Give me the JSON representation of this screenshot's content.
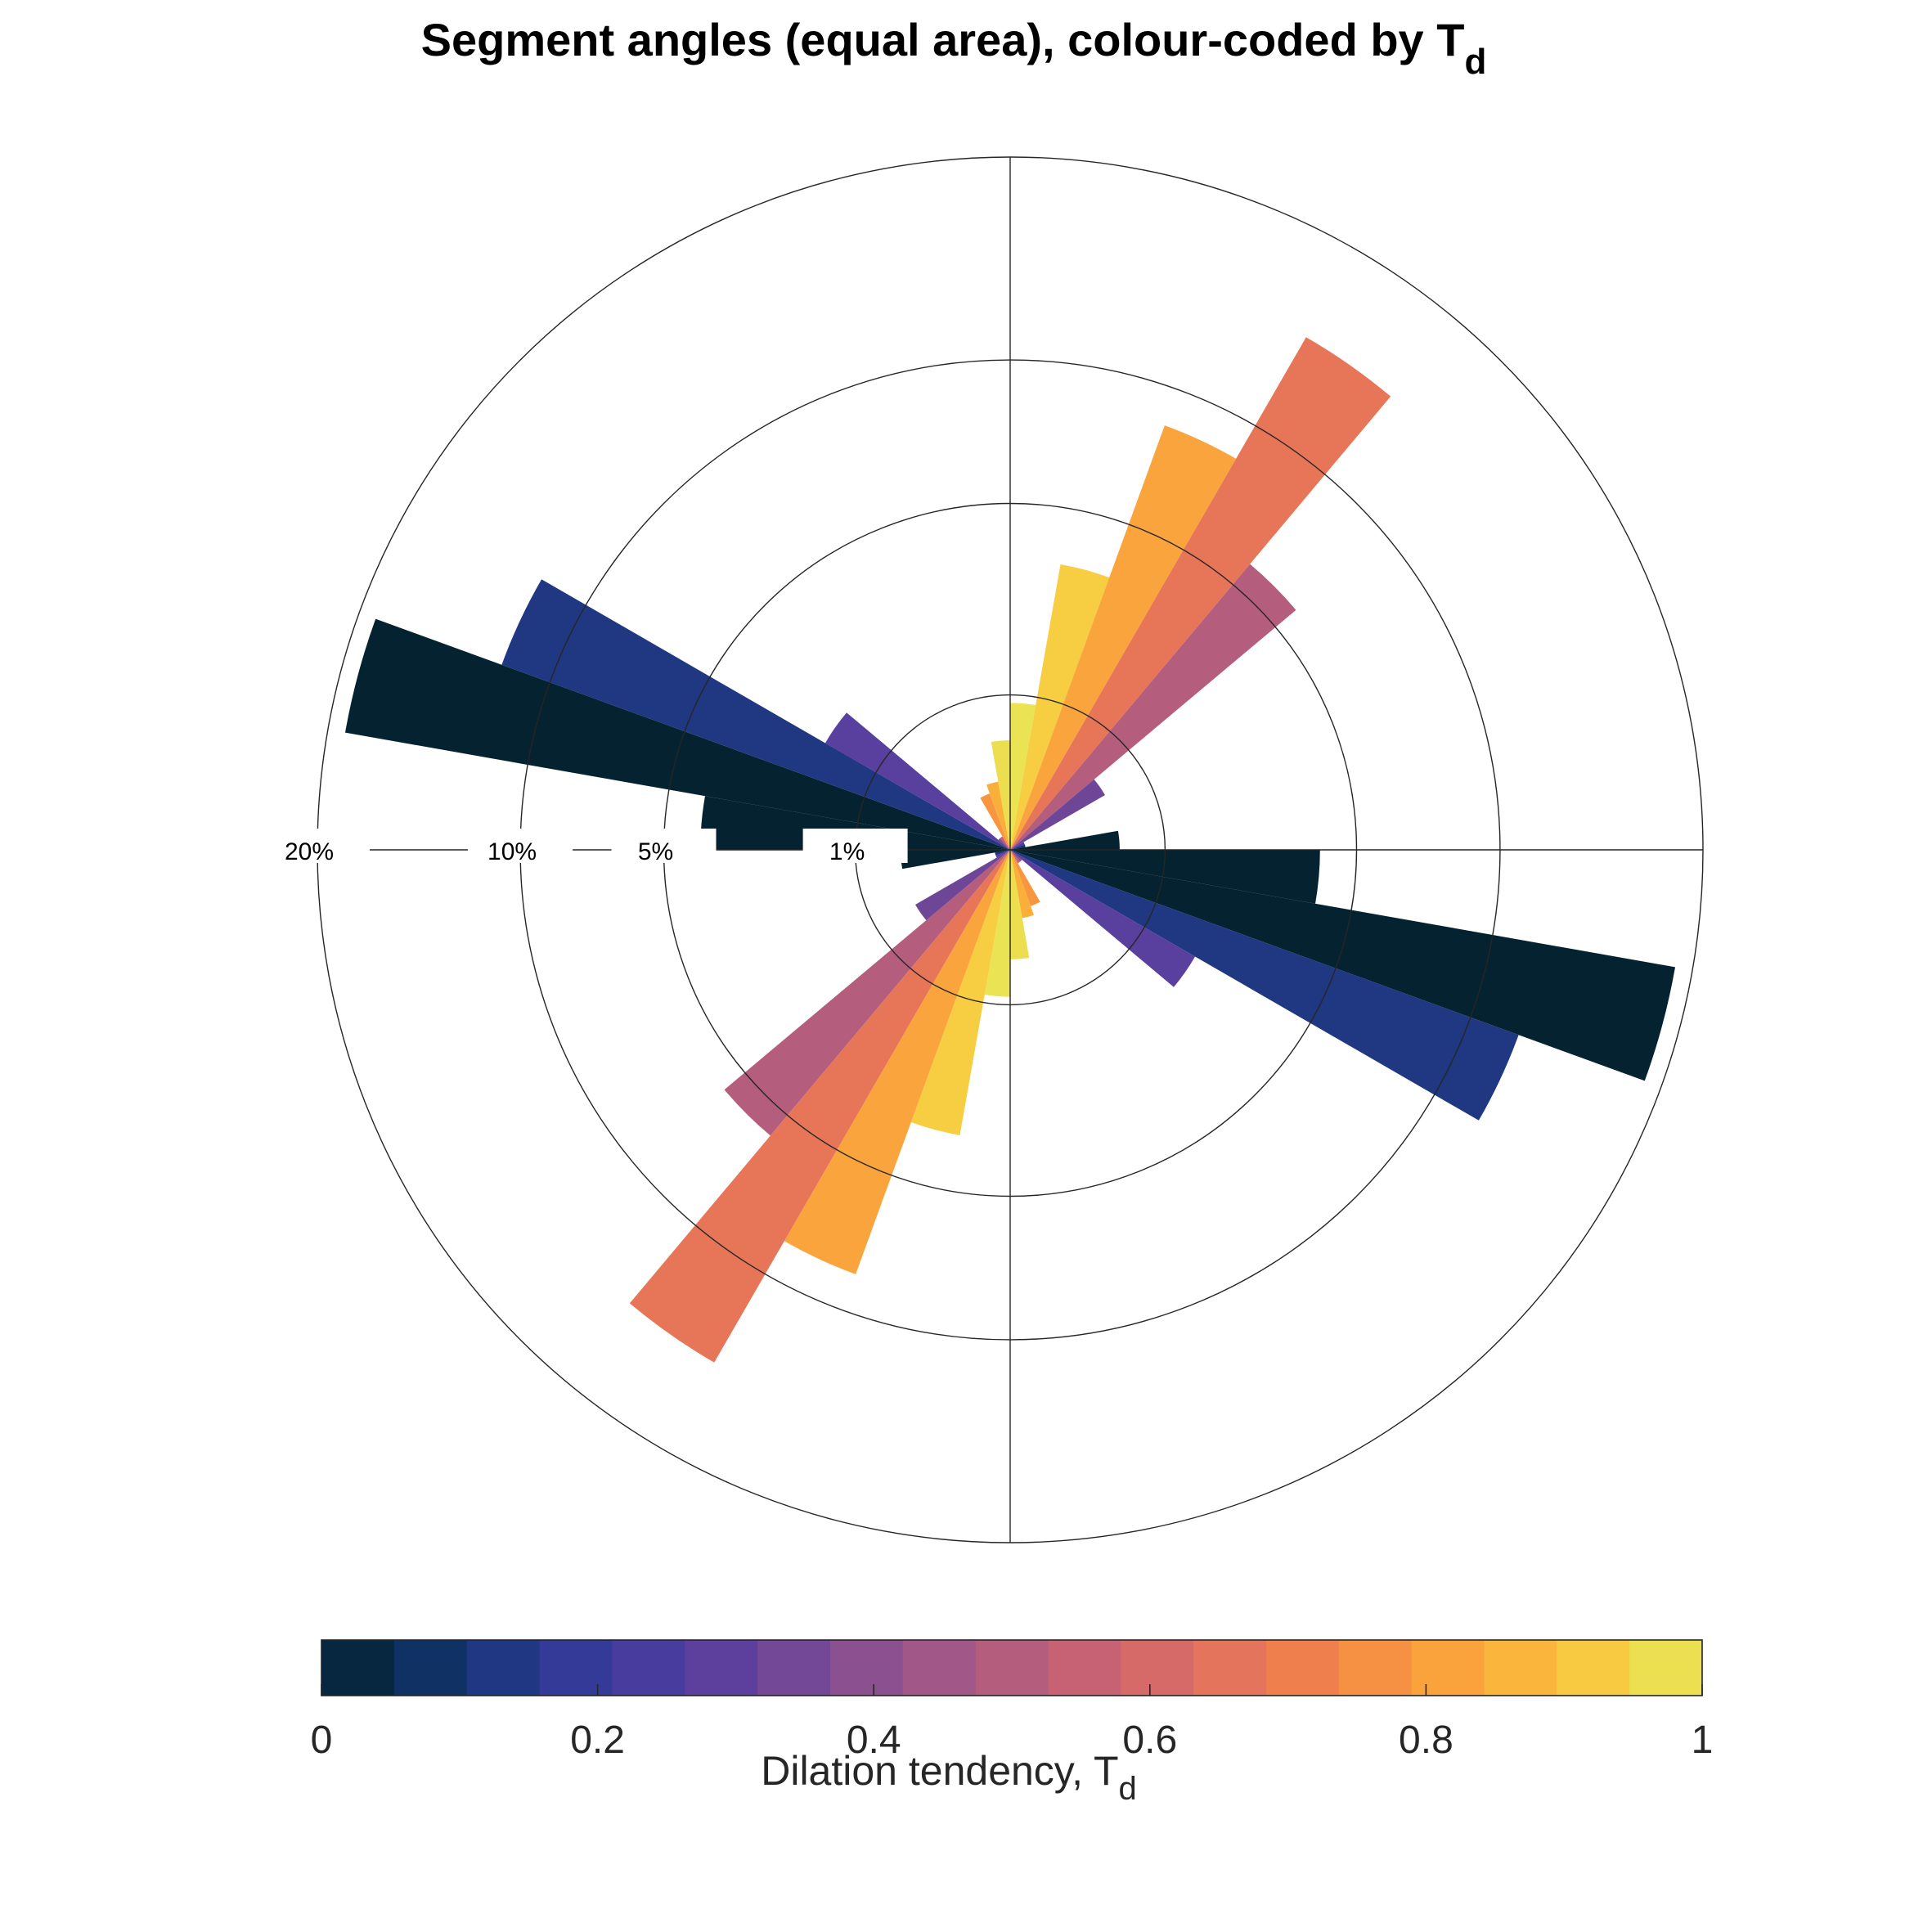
{
  "chart_data": {
    "type": "polar-histogram",
    "title": "Segment angles (equal area), colour-coded by T",
    "title_subscript": "d",
    "radial_scale": "equal-area",
    "ring_labels": [
      "20%",
      "10%",
      "5%",
      "1%"
    ],
    "ring_values": [
      20,
      10,
      5,
      1
    ],
    "bin_width_deg": 10,
    "symmetric": true,
    "bins": [
      {
        "angle_start": 0,
        "angle_end": 10,
        "percent": 0.9,
        "td": 0.98
      },
      {
        "angle_start": 10,
        "angle_end": 20,
        "percent": 3.5,
        "td": 0.93
      },
      {
        "angle_start": 20,
        "angle_end": 30,
        "percent": 8.5,
        "td": 0.82
      },
      {
        "angle_start": 30,
        "angle_end": 40,
        "percent": 14.6,
        "td": 0.67
      },
      {
        "angle_start": 40,
        "angle_end": 50,
        "percent": 5.8,
        "td": 0.5
      },
      {
        "angle_start": 50,
        "angle_end": 60,
        "percent": 0.5,
        "td": 0.33
      },
      {
        "angle_start": 60,
        "angle_end": 70,
        "percent": 0.01,
        "td": 0.25
      },
      {
        "angle_start": 70,
        "angle_end": 80,
        "percent": 0.01,
        "td": 0.1
      },
      {
        "angle_start": 80,
        "angle_end": 90,
        "percent": 0.5,
        "td": 0.0
      },
      {
        "angle_start": 90,
        "angle_end": 100,
        "percent": 4.0,
        "td": 0.0
      },
      {
        "angle_start": 100,
        "angle_end": 110,
        "percent": 19.0,
        "td": 0.0
      },
      {
        "angle_start": 110,
        "angle_end": 120,
        "percent": 12.2,
        "td": 0.13
      },
      {
        "angle_start": 120,
        "angle_end": 130,
        "percent": 1.9,
        "td": 0.28
      },
      {
        "angle_start": 130,
        "angle_end": 140,
        "percent": 0.01,
        "td": 0.4
      },
      {
        "angle_start": 140,
        "angle_end": 150,
        "percent": 0.01,
        "td": 0.55
      },
      {
        "angle_start": 150,
        "angle_end": 160,
        "percent": 0.15,
        "td": 0.78
      },
      {
        "angle_start": 160,
        "angle_end": 170,
        "percent": 0.2,
        "td": 0.85
      },
      {
        "angle_start": 170,
        "angle_end": 180,
        "percent": 0.5,
        "td": 0.97
      }
    ],
    "colorbar": {
      "label": "Dilation tendency, T",
      "label_subscript": "d",
      "min": 0,
      "max": 1,
      "n_levels": 19,
      "ticks": [
        0,
        0.2,
        0.4,
        0.6,
        0.8,
        1
      ],
      "tick_labels": [
        "0",
        "0.2",
        "0.4",
        "0.6",
        "0.8",
        "1"
      ],
      "stops": [
        "#04222f",
        "#0c3060",
        "#243a8a",
        "#3f3aa0",
        "#5b3f9e",
        "#7a4b94",
        "#9a558a",
        "#b45d7d",
        "#cc6470",
        "#e1705f",
        "#f0814d",
        "#f9983f",
        "#fbb23b",
        "#f7cd42",
        "#e5eb5a"
      ]
    }
  }
}
